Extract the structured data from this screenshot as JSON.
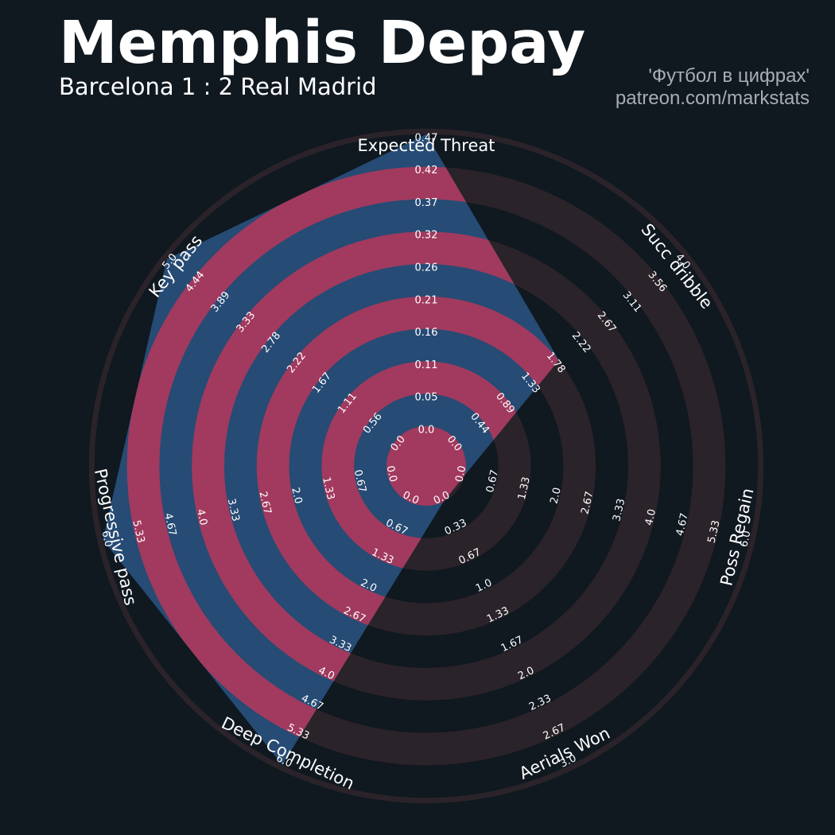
{
  "header": {
    "title": "Memphis Depay",
    "subtitle": "Barcelona 1 : 2 Real Madrid",
    "credit_line1": "'Футбол в цифрах'",
    "credit_line2": "patreon.com/markstats"
  },
  "colors": {
    "background": "#101820",
    "ring_light": "#2a2329",
    "ring_dark": "#101820",
    "player_fill": "#264b74",
    "player_ring": "#a13a5e",
    "label": "#ffffff",
    "tick": "#ffffff",
    "credit": "#a9adb3"
  },
  "chart_data": {
    "type": "radar",
    "params": [
      "Expected Threat",
      "Succ dribble",
      "Poss Regain",
      "Aerials Won",
      "Deep Completion",
      "Progressive pass",
      "Key pass"
    ],
    "ranges": [
      [
        0,
        0.47
      ],
      [
        0,
        4.0
      ],
      [
        0,
        6.0
      ],
      [
        0,
        3.0
      ],
      [
        0,
        6.0
      ],
      [
        0,
        6.0
      ],
      [
        0,
        5.0
      ]
    ],
    "tick_labels": [
      [
        "0.0",
        "0.05",
        "0.11",
        "0.16",
        "0.21",
        "0.26",
        "0.32",
        "0.37",
        "0.42",
        "0.47"
      ],
      [
        "0.0",
        "0.44",
        "0.89",
        "1.33",
        "1.78",
        "2.22",
        "2.67",
        "3.11",
        "3.56",
        "4.0"
      ],
      [
        "0.0",
        "0.67",
        "1.33",
        "2.0",
        "2.67",
        "3.33",
        "4.0",
        "4.67",
        "5.33",
        "6.0"
      ],
      [
        "0.0",
        "0.33",
        "0.67",
        "1.0",
        "1.33",
        "1.67",
        "2.0",
        "2.33",
        "2.67",
        "3.0"
      ],
      [
        "0.0",
        "0.67",
        "1.33",
        "2.0",
        "2.67",
        "3.33",
        "4.0",
        "4.67",
        "5.33",
        "6.0"
      ],
      [
        "0.0",
        "0.67",
        "1.33",
        "2.0",
        "2.67",
        "3.33",
        "4.0",
        "4.67",
        "5.33",
        "6.0"
      ],
      [
        "0.0",
        "0.56",
        "1.11",
        "1.67",
        "2.22",
        "2.78",
        "3.33",
        "3.89",
        "4.44",
        "5.0"
      ]
    ],
    "series": [
      {
        "values": [
          0.47,
          1.78,
          0.0,
          0.0,
          6.0,
          6.0,
          5.0
        ]
      }
    ]
  }
}
